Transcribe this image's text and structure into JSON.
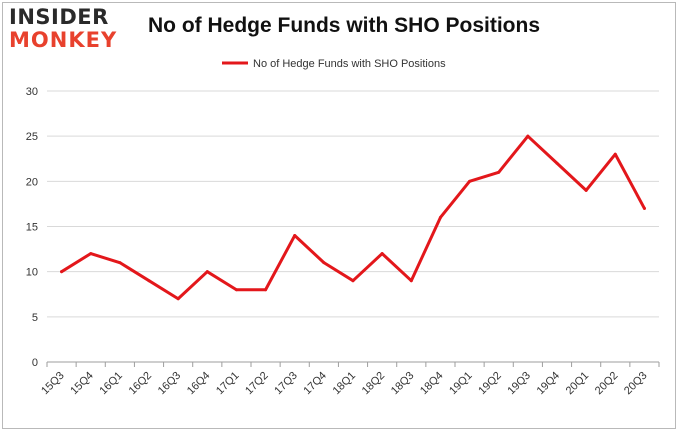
{
  "brand": {
    "line1": "INSIDER",
    "line2": "MONKEY"
  },
  "colors": {
    "series": "#e3171b",
    "grid": "#d9d9d9",
    "axis": "#9e9e9e",
    "brand_accent": "#e8412d"
  },
  "chart_data": {
    "type": "line",
    "title": "No of Hedge Funds with SHO Positions",
    "xlabel": "",
    "ylabel": "",
    "ylim": [
      0,
      30
    ],
    "yticks": [
      0,
      5,
      10,
      15,
      20,
      25,
      30
    ],
    "grid": true,
    "legend_position": "top-center",
    "categories": [
      "15Q3",
      "15Q4",
      "16Q1",
      "16Q2",
      "16Q3",
      "16Q4",
      "17Q1",
      "17Q2",
      "17Q3",
      "17Q4",
      "18Q1",
      "18Q2",
      "18Q3",
      "18Q4",
      "19Q1",
      "19Q2",
      "19Q3",
      "19Q4",
      "20Q1",
      "20Q2",
      "20Q3"
    ],
    "series": [
      {
        "name": "No of Hedge Funds with SHO Positions",
        "values": [
          10,
          12,
          11,
          9,
          7,
          10,
          8,
          8,
          14,
          11,
          9,
          12,
          9,
          16,
          20,
          21,
          25,
          22,
          19,
          23,
          17
        ]
      }
    ]
  }
}
